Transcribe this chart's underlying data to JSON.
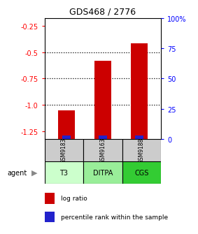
{
  "title": "GDS468 / 2776",
  "samples": [
    "GSM9183",
    "GSM9163",
    "GSM9188"
  ],
  "agents": [
    "T3",
    "DITPA",
    "CGS"
  ],
  "log_ratios": [
    -1.05,
    -0.58,
    -0.42
  ],
  "left_yticks": [
    -0.25,
    -0.5,
    -0.75,
    -1.0,
    -1.25
  ],
  "right_yticks": [
    100,
    75,
    50,
    25,
    0
  ],
  "ymin": -1.32,
  "ymax": -0.18,
  "bar_color": "#cc0000",
  "percentile_color": "#2222cc",
  "agent_colors": [
    "#ccffcc",
    "#99ee99",
    "#33cc33"
  ],
  "sample_bg": "#cccccc",
  "grid_color": "#111111",
  "gridlines": [
    -0.5,
    -0.75,
    -1.0
  ]
}
